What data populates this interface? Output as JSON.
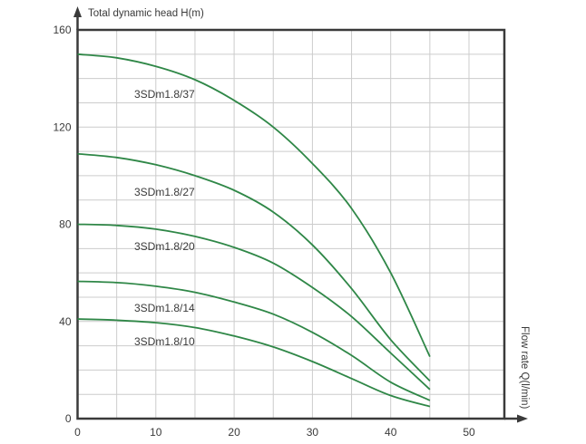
{
  "colors": {
    "curve": "#2f8747",
    "grid": "#cccccc",
    "axis": "#3a3a3a",
    "text": "#3a3a3a",
    "background": "#ffffff"
  },
  "chart_data": {
    "type": "line",
    "title": "",
    "xlabel": "Flow rate Q(l/min)",
    "ylabel": "Total dynamic head H(m)",
    "xlim": [
      0,
      54.5
    ],
    "ylim": [
      0,
      160
    ],
    "x_ticks": [
      0,
      10,
      20,
      30,
      40,
      50
    ],
    "y_ticks": [
      0,
      40,
      80,
      120,
      160
    ],
    "x_grid_step": 5,
    "y_grid_step": 10,
    "grid": true,
    "legend_position": "inline-labels",
    "x": [
      0,
      5,
      10,
      15,
      20,
      25,
      30,
      35,
      40,
      45
    ],
    "series": [
      {
        "name": "3SDm1.8/37",
        "values": [
          150,
          148.5,
          145,
          139.5,
          131,
          120,
          105,
          86.5,
          60,
          25.5
        ]
      },
      {
        "name": "3SDm1.8/27",
        "values": [
          109,
          107.5,
          104.5,
          100,
          94,
          85,
          71.5,
          53.5,
          32.5,
          15.5
        ]
      },
      {
        "name": "3SDm1.8/20",
        "values": [
          80,
          79.5,
          78,
          75,
          70.5,
          64,
          54,
          42,
          27,
          12
        ]
      },
      {
        "name": "3SDm1.8/14",
        "values": [
          56.5,
          56,
          54.5,
          52,
          48,
          43,
          35.5,
          26,
          15,
          7.5
        ]
      },
      {
        "name": "3SDm1.8/10",
        "values": [
          41,
          40.5,
          39.5,
          37.5,
          34,
          29.5,
          23.5,
          16.5,
          9.5,
          5
        ]
      }
    ]
  }
}
